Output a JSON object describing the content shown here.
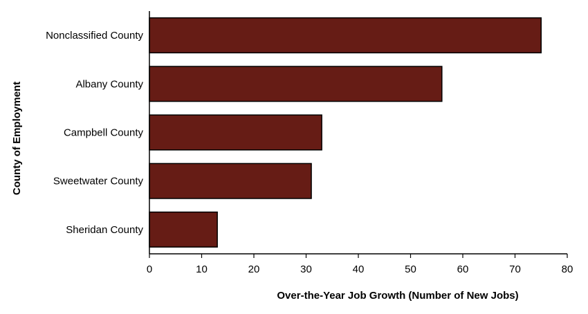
{
  "chart_data": {
    "type": "bar",
    "orientation": "horizontal",
    "categories": [
      "Nonclassified County",
      "Albany County",
      "Campbell County",
      "Sweetwater County",
      "Sheridan County"
    ],
    "values": [
      75,
      56,
      33,
      31,
      13
    ],
    "xlabel": "Over-the-Year Job Growth (Number of New Jobs)",
    "ylabel": "County of Employment",
    "xlim": [
      0,
      80
    ],
    "xticks": [
      0,
      10,
      20,
      30,
      40,
      50,
      60,
      70,
      80
    ],
    "grid": false,
    "legend": "none",
    "bar_color": "#661c15",
    "bar_edge_color": "#000000"
  }
}
